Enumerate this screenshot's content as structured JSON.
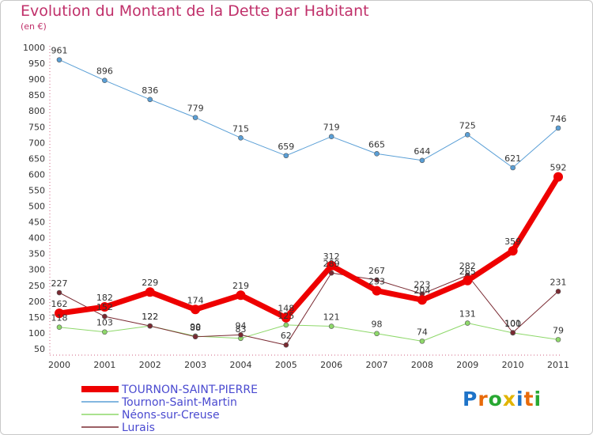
{
  "header": {
    "title": "Evolution du Montant de la Dette par Habitant",
    "subtitle": "(en €)"
  },
  "logo": {
    "letters": [
      "P",
      "r",
      "o",
      "x",
      "i",
      "t",
      "i"
    ],
    "colors": [
      "#1e73c8",
      "#e86a0a",
      "#28a832",
      "#e2b400",
      "#1e73c8",
      "#e86a0a",
      "#28a832"
    ]
  },
  "chart_data": {
    "type": "line",
    "title": "Evolution du Montant de la Dette par Habitant",
    "subtitle": "(en €)",
    "xlabel": "",
    "ylabel": "",
    "x": [
      "2000",
      "2001",
      "2002",
      "2003",
      "2004",
      "2005",
      "2006",
      "2007",
      "2008",
      "2009",
      "2010",
      "2011"
    ],
    "ylim": [
      50,
      1000
    ],
    "yticks": [
      50,
      100,
      150,
      200,
      250,
      300,
      350,
      400,
      450,
      500,
      550,
      600,
      650,
      700,
      750,
      800,
      850,
      900,
      950,
      1000
    ],
    "grid": false,
    "legend": "bottom-left",
    "series": [
      {
        "name": "TOURNON-SAINT-PIERRE",
        "color": "#ee0000",
        "width": 7,
        "marker": 6,
        "values": [
          162,
          182,
          229,
          174,
          219,
          148,
          312,
          233,
          204,
          265,
          359,
          592
        ]
      },
      {
        "name": "Tournon-Saint-Martin",
        "color": "#5a9fd6",
        "width": 1,
        "marker": 3,
        "values": [
          961,
          896,
          836,
          779,
          715,
          659,
          719,
          665,
          644,
          725,
          621,
          746
        ]
      },
      {
        "name": "Néons-sur-Creuse",
        "color": "#8ed86a",
        "width": 1,
        "marker": 3,
        "values": [
          118,
          103,
          122,
          90,
          83,
          125,
          121,
          98,
          74,
          131,
          100,
          79
        ]
      },
      {
        "name": "Lurais",
        "color": "#7a2a32",
        "width": 1,
        "marker": 3,
        "values": [
          227,
          152,
          122,
          88,
          94,
          62,
          289,
          267,
          223,
          282,
          101,
          231
        ]
      }
    ],
    "labels": [
      {
        "series": 0,
        "texts": [
          "162",
          "182",
          "229",
          "174",
          "219",
          "148",
          "312",
          "233",
          "204",
          "265",
          "359",
          "592"
        ]
      },
      {
        "series": 1,
        "texts": [
          "961",
          "896",
          "836",
          "779",
          "715",
          "659",
          "719",
          "665",
          "644",
          "725",
          "621",
          "746"
        ]
      },
      {
        "series": 2,
        "texts": [
          "118",
          "103",
          "122",
          "90",
          "83",
          "125",
          "121",
          "98",
          "74",
          "131",
          "100",
          "79"
        ]
      },
      {
        "series": 3,
        "texts": [
          "227",
          "152",
          "122",
          "88",
          "94",
          "62",
          "289",
          "267",
          "223",
          "282",
          "101",
          "231"
        ]
      }
    ]
  }
}
